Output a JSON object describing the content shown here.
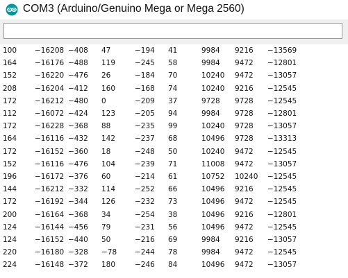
{
  "window": {
    "title": "COM3 (Arduino/Genuino Mega or Mega 2560)",
    "icon": "arduino-icon",
    "accent": "#00979c"
  },
  "send_field": {
    "value": "",
    "placeholder": ""
  },
  "serial_output": [
    [
      "100",
      "−16208",
      "−408",
      "47",
      "−194",
      "41",
      "9984",
      "9216",
      "−13569"
    ],
    [
      "164",
      "−16176",
      "−488",
      "119",
      "−245",
      "58",
      "9984",
      "9472",
      "−12801"
    ],
    [
      "152",
      "−16220",
      "−476",
      "26",
      "−184",
      "70",
      "10240",
      "9472",
      "−13057"
    ],
    [
      "208",
      "−16204",
      "−412",
      "160",
      "−168",
      "74",
      "10240",
      "9216",
      "−12545"
    ],
    [
      "172",
      "−16212",
      "−480",
      "0",
      "−209",
      "37",
      "9728",
      "9728",
      "−12545"
    ],
    [
      "112",
      "−16072",
      "−424",
      "123",
      "−205",
      "94",
      "9984",
      "9728",
      "−12801"
    ],
    [
      "172",
      "−16228",
      "−368",
      "88",
      "−235",
      "99",
      "10240",
      "9728",
      "−13057"
    ],
    [
      "164",
      "−16116",
      "−432",
      "142",
      "−237",
      "68",
      "10496",
      "9728",
      "−13313"
    ],
    [
      "172",
      "−16152",
      "−360",
      "18",
      "−248",
      "50",
      "10240",
      "9472",
      "−12545"
    ],
    [
      "152",
      "−16116",
      "−476",
      "104",
      "−239",
      "71",
      "11008",
      "9472",
      "−13057"
    ],
    [
      "196",
      "−16172",
      "−376",
      "60",
      "−214",
      "61",
      "10752",
      "10240",
      "−12545"
    ],
    [
      "144",
      "−16212",
      "−332",
      "114",
      "−252",
      "66",
      "10496",
      "9216",
      "−12545"
    ],
    [
      "172",
      "−16192",
      "−344",
      "126",
      "−232",
      "73",
      "10496",
      "9472",
      "−12545"
    ],
    [
      "200",
      "−16164",
      "−368",
      "34",
      "−254",
      "38",
      "10496",
      "9216",
      "−12801"
    ],
    [
      "124",
      "−16144",
      "−456",
      "79",
      "−231",
      "56",
      "10496",
      "9472",
      "−12545"
    ],
    [
      "124",
      "−16152",
      "−440",
      "50",
      "−216",
      "69",
      "9984",
      "9216",
      "−13057"
    ],
    [
      "220",
      "−16180",
      "−328",
      "−78",
      "−244",
      "78",
      "9984",
      "9472",
      "−12545"
    ],
    [
      "224",
      "−16148",
      "−372",
      "180",
      "−246",
      "84",
      "10496",
      "9472",
      "−13057"
    ]
  ]
}
